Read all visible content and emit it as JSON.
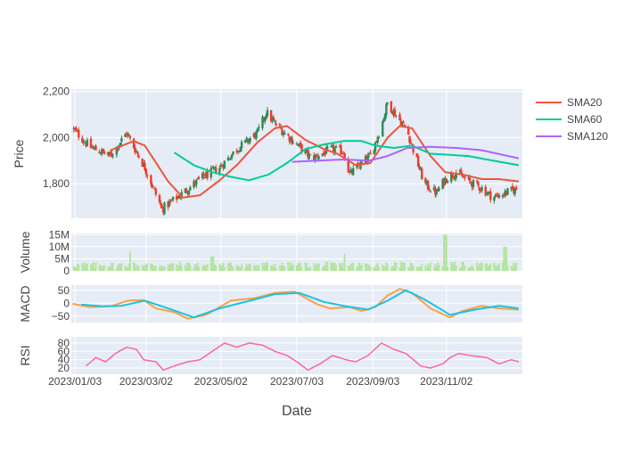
{
  "chart_data": {
    "type": "candlestick",
    "xlabel": "Date",
    "x_tick_labels": [
      "2023/01/03",
      "2023/03/02",
      "2023/05/02",
      "2023/07/03",
      "2023/09/03",
      "2023/11/02"
    ],
    "x_range": [
      "2022/12/31",
      "2024/01/03"
    ],
    "legend": {
      "placement": "top-right",
      "entries": [
        {
          "name": "SMA20",
          "color": "#ef553b"
        },
        {
          "name": "SMA60",
          "color": "#00cc96"
        },
        {
          "name": "SMA120",
          "color": "#ab63fa"
        }
      ]
    },
    "colors": {
      "up": "#2e8b57",
      "down": "#ef3b2c",
      "plot_bg": "#e5ecf6",
      "volume": "#b5e5a0",
      "macd": "#ff9f43",
      "signal": "#19c3e0",
      "rsi": "#ff6692"
    },
    "panels": {
      "price": {
        "ylabel": "Price",
        "ylim": [
          1650,
          2210
        ],
        "y_tick_labels": [
          "2,200",
          "2,000",
          "1,800"
        ],
        "y_ticks": [
          2200,
          2000,
          1800
        ],
        "anchors": [
          {
            "date": "2023/01/01",
            "close": 2040
          },
          {
            "date": "2023/01/15",
            "close": 1960
          },
          {
            "date": "2023/02/01",
            "close": 1920
          },
          {
            "date": "2023/02/14",
            "close": 2020
          },
          {
            "date": "2023/03/01",
            "close": 1870
          },
          {
            "date": "2023/03/15",
            "close": 1690
          },
          {
            "date": "2023/04/01",
            "close": 1760
          },
          {
            "date": "2023/04/15",
            "close": 1820
          },
          {
            "date": "2023/05/01",
            "close": 1870
          },
          {
            "date": "2023/05/15",
            "close": 1950
          },
          {
            "date": "2023/06/01",
            "close": 2020
          },
          {
            "date": "2023/06/08",
            "close": 2110
          },
          {
            "date": "2023/06/15",
            "close": 2060
          },
          {
            "date": "2023/07/01",
            "close": 1980
          },
          {
            "date": "2023/07/15",
            "close": 1910
          },
          {
            "date": "2023/08/01",
            "close": 1950
          },
          {
            "date": "2023/08/10",
            "close": 1940
          },
          {
            "date": "2023/08/15",
            "close": 1840
          },
          {
            "date": "2023/09/01",
            "close": 1920
          },
          {
            "date": "2023/09/10",
            "close": 2050
          },
          {
            "date": "2023/09/15",
            "close": 2150
          },
          {
            "date": "2023/10/01",
            "close": 2030
          },
          {
            "date": "2023/10/15",
            "close": 1800
          },
          {
            "date": "2023/10/25",
            "close": 1760
          },
          {
            "date": "2023/11/01",
            "close": 1820
          },
          {
            "date": "2023/11/10",
            "close": 1850
          },
          {
            "date": "2023/11/20",
            "close": 1810
          },
          {
            "date": "2023/12/01",
            "close": 1780
          },
          {
            "date": "2023/12/10",
            "close": 1740
          },
          {
            "date": "2023/12/31",
            "close": 1780
          }
        ],
        "sma20": [
          [
            "2023/02/01",
            1945
          ],
          [
            "2023/02/20",
            1985
          ],
          [
            "2023/03/01",
            1965
          ],
          [
            "2023/03/20",
            1810
          ],
          [
            "2023/04/01",
            1740
          ],
          [
            "2023/04/15",
            1750
          ],
          [
            "2023/05/01",
            1815
          ],
          [
            "2023/05/15",
            1880
          ],
          [
            "2023/06/01",
            1980
          ],
          [
            "2023/06/15",
            2040
          ],
          [
            "2023/06/25",
            2050
          ],
          [
            "2023/07/10",
            1990
          ],
          [
            "2023/07/25",
            1950
          ],
          [
            "2023/08/05",
            1930
          ],
          [
            "2023/08/20",
            1880
          ],
          [
            "2023/09/01",
            1890
          ],
          [
            "2023/09/15",
            2000
          ],
          [
            "2023/09/25",
            2050
          ],
          [
            "2023/10/05",
            2040
          ],
          [
            "2023/10/20",
            1920
          ],
          [
            "2023/11/01",
            1850
          ],
          [
            "2023/11/15",
            1840
          ],
          [
            "2023/12/01",
            1820
          ],
          [
            "2023/12/15",
            1820
          ],
          [
            "2023/12/31",
            1810
          ]
        ],
        "sma60": [
          [
            "2023/03/25",
            1935
          ],
          [
            "2023/04/10",
            1880
          ],
          [
            "2023/04/25",
            1850
          ],
          [
            "2023/05/10",
            1830
          ],
          [
            "2023/05/25",
            1815
          ],
          [
            "2023/06/10",
            1840
          ],
          [
            "2023/06/25",
            1890
          ],
          [
            "2023/07/10",
            1950
          ],
          [
            "2023/07/25",
            1970
          ],
          [
            "2023/08/10",
            1985
          ],
          [
            "2023/08/25",
            1985
          ],
          [
            "2023/09/05",
            1965
          ],
          [
            "2023/09/20",
            1955
          ],
          [
            "2023/10/05",
            1965
          ],
          [
            "2023/10/20",
            1930
          ],
          [
            "2023/11/05",
            1925
          ],
          [
            "2023/11/20",
            1920
          ],
          [
            "2023/12/05",
            1905
          ],
          [
            "2023/12/31",
            1880
          ]
        ],
        "sma120": [
          [
            "2023/06/29",
            1895
          ],
          [
            "2023/07/20",
            1900
          ],
          [
            "2023/08/10",
            1905
          ],
          [
            "2023/08/31",
            1900
          ],
          [
            "2023/09/15",
            1920
          ],
          [
            "2023/10/01",
            1955
          ],
          [
            "2023/10/20",
            1960
          ],
          [
            "2023/11/10",
            1955
          ],
          [
            "2023/12/01",
            1945
          ],
          [
            "2023/12/31",
            1910
          ]
        ]
      },
      "volume": {
        "ylabel": "Volume",
        "ylim": [
          0,
          15500000
        ],
        "y_tick_labels": [
          "15M",
          "10M",
          "5M",
          "0"
        ],
        "y_ticks": [
          15000000,
          10000000,
          5000000,
          0
        ],
        "spikes": [
          {
            "date": "2023/02/18",
            "value": 8000000
          },
          {
            "date": "2023/04/25",
            "value": 6000000
          },
          {
            "date": "2023/08/12",
            "value": 7000000
          },
          {
            "date": "2023/11/01",
            "value": 15000000
          },
          {
            "date": "2023/12/20",
            "value": 10000000
          }
        ]
      },
      "macd": {
        "ylabel": "MACD",
        "ylim": [
          -75,
          70
        ],
        "y_tick_labels": [
          "50",
          "0",
          "−50"
        ],
        "y_ticks": [
          50,
          0,
          -50
        ],
        "macd": [
          [
            "2023/01/01",
            -2
          ],
          [
            "2023/01/15",
            -15
          ],
          [
            "2023/02/01",
            -12
          ],
          [
            "2023/02/15",
            10
          ],
          [
            "2023/02/28",
            12
          ],
          [
            "2023/03/10",
            -20
          ],
          [
            "2023/03/25",
            -35
          ],
          [
            "2023/04/05",
            -60
          ],
          [
            "2023/04/20",
            -45
          ],
          [
            "2023/05/10",
            10
          ],
          [
            "2023/05/30",
            20
          ],
          [
            "2023/06/15",
            40
          ],
          [
            "2023/07/01",
            45
          ],
          [
            "2023/07/20",
            -5
          ],
          [
            "2023/07/30",
            -20
          ],
          [
            "2023/08/15",
            -15
          ],
          [
            "2023/08/25",
            -30
          ],
          [
            "2023/09/05",
            -15
          ],
          [
            "2023/09/15",
            30
          ],
          [
            "2023/09/25",
            55
          ],
          [
            "2023/10/05",
            40
          ],
          [
            "2023/10/20",
            -20
          ],
          [
            "2023/11/05",
            -55
          ],
          [
            "2023/11/15",
            -30
          ],
          [
            "2023/12/01",
            -10
          ],
          [
            "2023/12/15",
            -20
          ],
          [
            "2023/12/31",
            -25
          ]
        ],
        "signal": [
          [
            "2023/01/08",
            -5
          ],
          [
            "2023/01/25",
            -12
          ],
          [
            "2023/02/10",
            -10
          ],
          [
            "2023/03/01",
            10
          ],
          [
            "2023/03/20",
            -20
          ],
          [
            "2023/04/10",
            -55
          ],
          [
            "2023/05/01",
            -20
          ],
          [
            "2023/05/30",
            15
          ],
          [
            "2023/06/15",
            35
          ],
          [
            "2023/07/05",
            40
          ],
          [
            "2023/07/25",
            5
          ],
          [
            "2023/08/10",
            -10
          ],
          [
            "2023/08/30",
            -25
          ],
          [
            "2023/09/15",
            10
          ],
          [
            "2023/09/30",
            50
          ],
          [
            "2023/10/15",
            15
          ],
          [
            "2023/11/05",
            -45
          ],
          [
            "2023/11/25",
            -25
          ],
          [
            "2023/12/15",
            -10
          ],
          [
            "2023/12/31",
            -20
          ]
        ]
      },
      "rsi": {
        "ylabel": "RSI",
        "ylim": [
          5,
          95
        ],
        "y_tick_labels": [
          "80",
          "60",
          "40",
          "20"
        ],
        "y_ticks": [
          80,
          60,
          40,
          20
        ],
        "values": [
          [
            "2023/01/12",
            25
          ],
          [
            "2023/01/20",
            45
          ],
          [
            "2023/01/28",
            35
          ],
          [
            "2023/02/05",
            55
          ],
          [
            "2023/02/14",
            70
          ],
          [
            "2023/02/22",
            65
          ],
          [
            "2023/02/28",
            40
          ],
          [
            "2023/03/10",
            35
          ],
          [
            "2023/03/16",
            15
          ],
          [
            "2023/03/25",
            25
          ],
          [
            "2023/04/05",
            35
          ],
          [
            "2023/04/15",
            40
          ],
          [
            "2023/04/25",
            60
          ],
          [
            "2023/05/05",
            80
          ],
          [
            "2023/05/15",
            70
          ],
          [
            "2023/05/25",
            80
          ],
          [
            "2023/06/05",
            75
          ],
          [
            "2023/06/15",
            60
          ],
          [
            "2023/06/25",
            50
          ],
          [
            "2023/07/03",
            35
          ],
          [
            "2023/07/12",
            15
          ],
          [
            "2023/07/22",
            30
          ],
          [
            "2023/08/01",
            50
          ],
          [
            "2023/08/12",
            40
          ],
          [
            "2023/08/20",
            35
          ],
          [
            "2023/08/30",
            50
          ],
          [
            "2023/09/10",
            80
          ],
          [
            "2023/09/20",
            65
          ],
          [
            "2023/09/30",
            55
          ],
          [
            "2023/10/12",
            25
          ],
          [
            "2023/10/20",
            20
          ],
          [
            "2023/10/30",
            30
          ],
          [
            "2023/11/05",
            45
          ],
          [
            "2023/11/12",
            55
          ],
          [
            "2023/11/22",
            50
          ],
          [
            "2023/12/05",
            45
          ],
          [
            "2023/12/15",
            30
          ],
          [
            "2023/12/25",
            40
          ],
          [
            "2023/12/31",
            35
          ]
        ]
      }
    }
  }
}
